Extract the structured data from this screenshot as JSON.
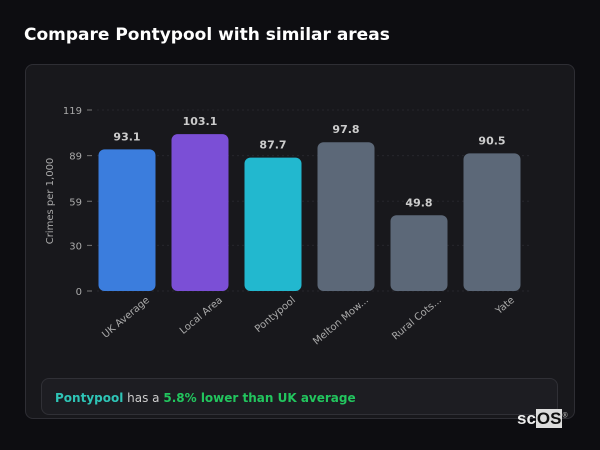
{
  "title": "Compare Pontypool with similar areas",
  "chart_data": {
    "type": "bar",
    "categories": [
      "UK Average",
      "Local Area",
      "Pontypool",
      "Melton Mow...",
      "Rural Cots...",
      "Yate"
    ],
    "values": [
      93.1,
      103.1,
      87.7,
      97.8,
      49.8,
      90.5
    ],
    "value_labels": [
      "93.1",
      "103.1",
      "87.7",
      "97.8",
      "49.8",
      "90.5"
    ],
    "colors": [
      "#3b7ddd",
      "#7b4fd6",
      "#22b8cf",
      "#5c6878",
      "#5c6878",
      "#5c6878"
    ],
    "ylabel": "Crimes per 1,000",
    "yticks": [
      "0",
      "30",
      "59",
      "89",
      "119"
    ],
    "ylim": [
      0,
      119
    ],
    "grid": true
  },
  "summary": {
    "place": "Pontypool",
    "middle": " has a ",
    "comparison": "5.8% lower than UK average"
  },
  "logo": {
    "text_a": "sc",
    "text_b": "OS",
    "mark": "®"
  }
}
